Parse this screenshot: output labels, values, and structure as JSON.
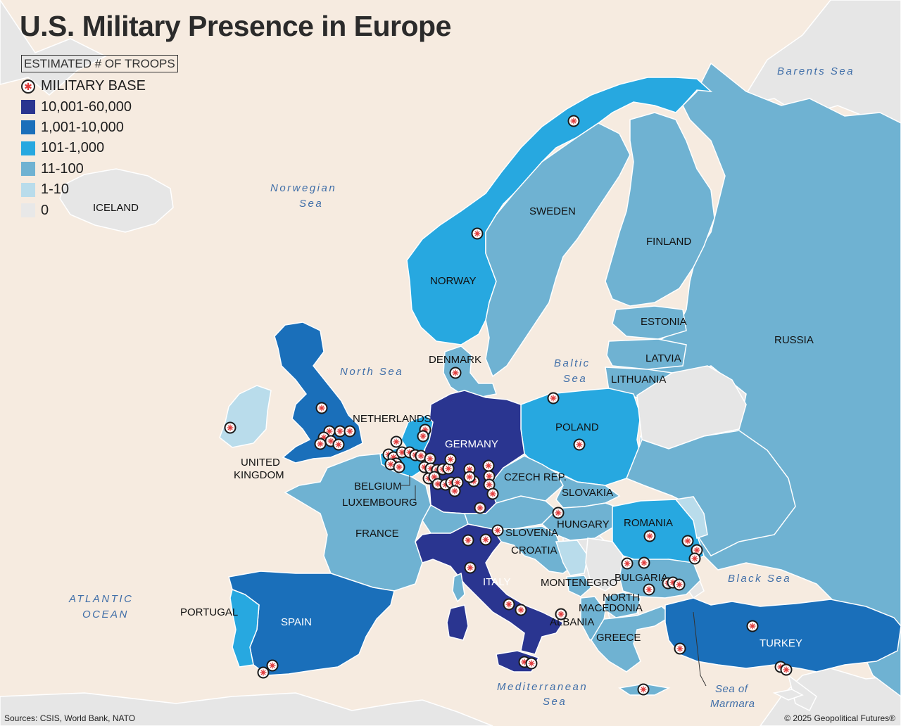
{
  "title": "U.S. Military Presence in Europe",
  "legend": {
    "heading": "ESTIMATED # OF TROOPS",
    "base_label": "MILITARY BASE",
    "tiers": [
      {
        "label": "10,001-60,000",
        "color": "#2a3590"
      },
      {
        "label": "1,001-10,000",
        "color": "#1a6fba"
      },
      {
        "label": "101-1,000",
        "color": "#27a8e0"
      },
      {
        "label": "11-100",
        "color": "#6fb2d2"
      },
      {
        "label": "1-10",
        "color": "#b9dceb"
      },
      {
        "label": "0",
        "color": "#e8e8e8"
      }
    ]
  },
  "map_colors": {
    "land_outside": "#e6e6e6",
    "sea": "#f6ebe0",
    "borders": "#ffffff"
  },
  "countries": {
    "iceland": "ICELAND",
    "norway": "NORWAY",
    "sweden": "SWEDEN",
    "finland": "FINLAND",
    "russia": "RUSSIA",
    "estonia": "ESTONIA",
    "latvia": "LATVIA",
    "lithuania": "LITHUANIA",
    "denmark": "DENMARK",
    "netherlands": "NETHERLANDS",
    "germany": "GERMANY",
    "poland": "POLAND",
    "uk_1": "UNITED",
    "uk_2": "KINGDOM",
    "belgium": "BELGIUM",
    "luxembourg": "LUXEMBOURG",
    "czech": "CZECH REP.",
    "slovakia": "SLOVAKIA",
    "hungary": "HUNGARY",
    "romania": "ROMANIA",
    "slovenia": "SLOVENIA",
    "croatia": "CROATIA",
    "france": "FRANCE",
    "italy": "ITALY",
    "montenegro": "MONTENEGRO",
    "bulgaria": "BULGARIA",
    "north_macedonia_1": "NORTH",
    "north_macedonia_2": "MACEDONIA",
    "albania": "ALBANIA",
    "greece": "GREECE",
    "portugal": "PORTUGAL",
    "spain": "SPAIN",
    "turkey": "TURKEY"
  },
  "seas": {
    "barents": "Barents Sea",
    "norwegian_1": "Norwegian",
    "norwegian_2": "Sea",
    "north": "North Sea",
    "baltic_1": "Baltic",
    "baltic_2": "Sea",
    "black": "Black Sea",
    "atlantic_1": "ATLANTIC",
    "atlantic_2": "OCEAN",
    "med_1": "Mediterranean",
    "med_2": "Sea",
    "marmara_1": "Sea of",
    "marmara_2": "Marmara"
  },
  "military_base_count": 73,
  "footer": {
    "sources": "Sources: CSIS, World Bank, NATO",
    "copyright": "© 2025 Geopolitical Futures®"
  }
}
